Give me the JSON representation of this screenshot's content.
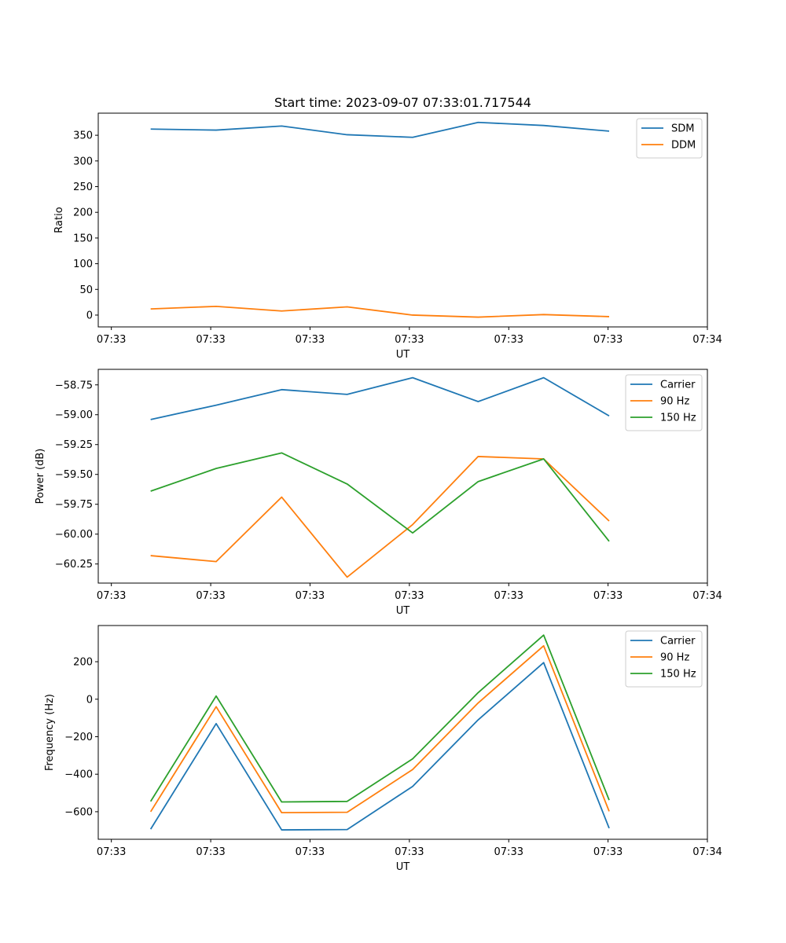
{
  "chart_data": [
    {
      "type": "line",
      "title": "Start time: 2023-09-07 07:33:01.717544",
      "xlabel": "UT",
      "ylabel": "Ratio",
      "xlim": [
        -0.8,
        8.5
      ],
      "ylim": [
        -23,
        393
      ],
      "x_ticks": [
        {
          "value": -0.6,
          "label": "07:33"
        },
        {
          "value": 0.917,
          "label": "07:33"
        },
        {
          "value": 2.433,
          "label": "07:33"
        },
        {
          "value": 3.95,
          "label": "07:33"
        },
        {
          "value": 5.467,
          "label": "07:33"
        },
        {
          "value": 6.983,
          "label": "07:33"
        },
        {
          "value": 8.5,
          "label": "07:34"
        }
      ],
      "y_ticks": [
        0,
        50,
        100,
        150,
        200,
        250,
        300,
        350
      ],
      "x": [
        0,
        1,
        2,
        3,
        4,
        5,
        6,
        7
      ],
      "series": [
        {
          "name": "SDM",
          "color": "#1f77b4",
          "values": [
            362,
            360,
            368,
            351,
            346,
            375,
            369,
            358
          ]
        },
        {
          "name": "DDM",
          "color": "#ff7f0e",
          "values": [
            12,
            17,
            8,
            16,
            0,
            -4,
            1,
            -3
          ]
        }
      ],
      "legend": "top-right"
    },
    {
      "type": "line",
      "title": "",
      "xlabel": "UT",
      "ylabel": "Power (dB)",
      "xlim": [
        -0.8,
        8.5
      ],
      "ylim": [
        -60.41,
        -58.62
      ],
      "x_ticks": [
        {
          "value": -0.6,
          "label": "07:33"
        },
        {
          "value": 0.917,
          "label": "07:33"
        },
        {
          "value": 2.433,
          "label": "07:33"
        },
        {
          "value": 3.95,
          "label": "07:33"
        },
        {
          "value": 5.467,
          "label": "07:33"
        },
        {
          "value": 6.983,
          "label": "07:33"
        },
        {
          "value": 8.5,
          "label": "07:34"
        }
      ],
      "y_ticks": [
        {
          "value": -60.25,
          "label": "−60.25"
        },
        {
          "value": -60.0,
          "label": "−60.00"
        },
        {
          "value": -59.75,
          "label": "−59.75"
        },
        {
          "value": -59.5,
          "label": "−59.50"
        },
        {
          "value": -59.25,
          "label": "−59.25"
        },
        {
          "value": -59.0,
          "label": "−59.00"
        },
        {
          "value": -58.75,
          "label": "−58.75"
        }
      ],
      "x": [
        0,
        1,
        2,
        3,
        4,
        5,
        6,
        7
      ],
      "series": [
        {
          "name": "Carrier",
          "color": "#1f77b4",
          "values": [
            -59.04,
            -58.92,
            -58.79,
            -58.83,
            -58.69,
            -58.89,
            -58.69,
            -59.01
          ]
        },
        {
          "name": "90 Hz",
          "color": "#ff7f0e",
          "values": [
            -60.18,
            -60.23,
            -59.69,
            -60.36,
            -59.92,
            -59.35,
            -59.37,
            -59.89
          ]
        },
        {
          "name": "150 Hz",
          "color": "#2ca02c",
          "values": [
            -59.64,
            -59.45,
            -59.32,
            -59.58,
            -59.99,
            -59.56,
            -59.37,
            -60.06
          ]
        }
      ],
      "legend": "top-right"
    },
    {
      "type": "line",
      "title": "",
      "xlabel": "UT",
      "ylabel": "Frequency (Hz)",
      "xlim": [
        -0.8,
        8.5
      ],
      "ylim": [
        -747,
        393
      ],
      "x_ticks": [
        {
          "value": -0.6,
          "label": "07:33"
        },
        {
          "value": 0.917,
          "label": "07:33"
        },
        {
          "value": 2.433,
          "label": "07:33"
        },
        {
          "value": 3.95,
          "label": "07:33"
        },
        {
          "value": 5.467,
          "label": "07:33"
        },
        {
          "value": 6.983,
          "label": "07:33"
        },
        {
          "value": 8.5,
          "label": "07:34"
        }
      ],
      "y_ticks": [
        {
          "value": -600,
          "label": "−600"
        },
        {
          "value": -400,
          "label": "−400"
        },
        {
          "value": -200,
          "label": "−200"
        },
        {
          "value": 0,
          "label": "0"
        },
        {
          "value": 200,
          "label": "200"
        }
      ],
      "x": [
        0,
        1,
        2,
        3,
        4,
        5,
        6,
        7
      ],
      "series": [
        {
          "name": "Carrier",
          "color": "#1f77b4",
          "values": [
            -693,
            -130,
            -697,
            -695,
            -465,
            -110,
            195,
            -688
          ]
        },
        {
          "name": "90 Hz",
          "color": "#ff7f0e",
          "values": [
            -600,
            -40,
            -605,
            -603,
            -375,
            -20,
            285,
            -598
          ]
        },
        {
          "name": "150 Hz",
          "color": "#2ca02c",
          "values": [
            -545,
            17,
            -548,
            -545,
            -318,
            35,
            342,
            -538
          ]
        }
      ],
      "legend": "top-right"
    }
  ]
}
